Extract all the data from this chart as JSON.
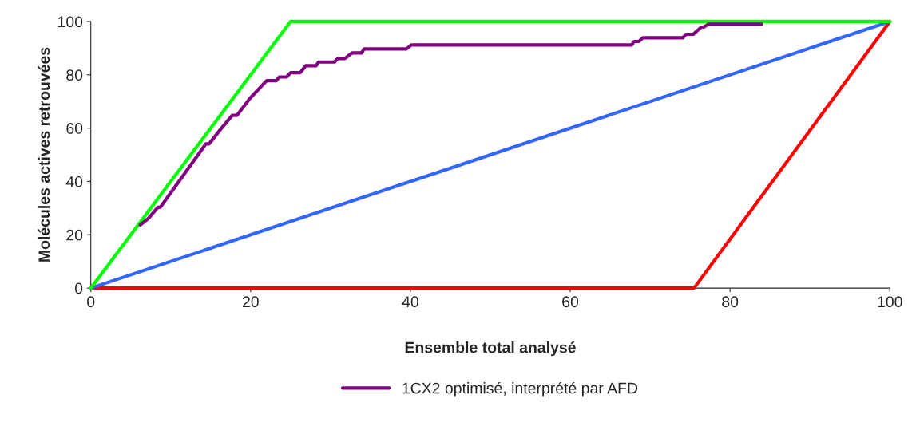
{
  "chart_data": {
    "type": "line",
    "xlabel": "Ensemble total analysé",
    "ylabel": "Molécules actives retrouvées",
    "xlim": [
      0,
      100
    ],
    "ylim": [
      0,
      100
    ],
    "xticks": [
      0,
      20,
      40,
      60,
      80,
      100
    ],
    "yticks": [
      0,
      20,
      40,
      60,
      80,
      100
    ],
    "grid": false,
    "legend": "bottom",
    "marker": "none",
    "line_style": "solid",
    "series": [
      {
        "color": "#ff0000",
        "x": [
          0,
          75.5,
          100
        ],
        "values": [
          0,
          0,
          100
        ]
      },
      {
        "color": "#3366ff",
        "x": [
          0,
          100
        ],
        "values": [
          0,
          100
        ]
      },
      {
        "color": "#00ff00",
        "x": [
          0,
          25,
          100
        ],
        "values": [
          0,
          100,
          100
        ]
      },
      {
        "name": "1CX2 optimisé, interprété par AFD",
        "color": "#800080",
        "x": [
          6.2,
          7.2,
          8.4,
          8.7,
          14.4,
          14.8,
          16.2,
          17.7,
          18.3,
          19.9,
          22.0,
          23.2,
          23.6,
          24.5,
          25.0,
          26.2,
          26.9,
          28.2,
          28.5,
          30.5,
          30.9,
          31.8,
          32.7,
          33.9,
          34.2,
          39.5,
          40.1,
          65.7,
          67.7,
          68.0,
          68.6,
          69.1,
          74.1,
          74.5,
          75.4,
          76.4,
          76.7,
          77.3,
          84.0
        ],
        "values": [
          23.7,
          26.1,
          30.3,
          30.3,
          54.1,
          54.1,
          59.4,
          64.8,
          64.8,
          71.1,
          77.8,
          77.8,
          79.2,
          79.2,
          80.8,
          80.8,
          83.4,
          83.4,
          84.8,
          84.8,
          86.1,
          86.1,
          88.2,
          88.2,
          89.7,
          89.7,
          91.2,
          91.2,
          91.2,
          92.5,
          92.5,
          93.9,
          93.9,
          95.2,
          95.2,
          97.9,
          97.9,
          99.0,
          99.0
        ]
      }
    ]
  }
}
